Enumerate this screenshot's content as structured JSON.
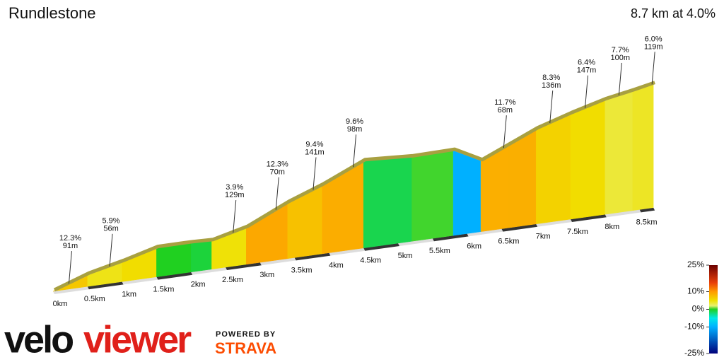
{
  "chart_data": {
    "type": "elevation-profile",
    "title": "Rundlestone",
    "subtitle": "8.7 km at 4.0%",
    "x": [
      0,
      0.5,
      1,
      1.5,
      2,
      2.3,
      2.8,
      3.4,
      3.9,
      4.5,
      5.2,
      5.8,
      6.2,
      6.6,
      7,
      7.5,
      8,
      8.4,
      8.7
    ],
    "elevation": [
      0,
      34,
      56,
      82,
      82,
      80,
      104,
      158,
      194,
      246,
      238,
      240,
      200,
      234,
      268,
      298,
      324,
      338,
      350
    ],
    "xlim": [
      0,
      8.7
    ],
    "xticks": [
      {
        "value": 0,
        "label": "0km"
      },
      {
        "value": 0.5,
        "label": "0.5km"
      },
      {
        "value": 1,
        "label": "1km"
      },
      {
        "value": 1.5,
        "label": "1.5km"
      },
      {
        "value": 2,
        "label": "2km"
      },
      {
        "value": 2.5,
        "label": "2.5km"
      },
      {
        "value": 3,
        "label": "3km"
      },
      {
        "value": 3.5,
        "label": "3.5km"
      },
      {
        "value": 4,
        "label": "4km"
      },
      {
        "value": 4.5,
        "label": "4.5km"
      },
      {
        "value": 5,
        "label": "5km"
      },
      {
        "value": 5.5,
        "label": "5.5km"
      },
      {
        "value": 6,
        "label": "6km"
      },
      {
        "value": 6.5,
        "label": "6.5km"
      },
      {
        "value": 7,
        "label": "7km"
      },
      {
        "value": 7.5,
        "label": "7.5km"
      },
      {
        "value": 8,
        "label": "8km"
      },
      {
        "value": 8.5,
        "label": "8.5km"
      }
    ],
    "climbs": {
      "x": [
        0.23,
        0.82,
        2.61,
        3.23,
        3.77,
        4.35,
        6.53,
        7.2,
        7.71,
        8.2,
        8.68
      ],
      "values": [
        12.3,
        5.9,
        3.9,
        12.3,
        9.4,
        9.6,
        11.7,
        8.3,
        6.4,
        7.7,
        6.0
      ],
      "value_labels": [
        "12.3%",
        "5.9%",
        "3.9%",
        "12.3%",
        "9.4%",
        "9.6%",
        "11.7%",
        "8.3%",
        "6.4%",
        "7.7%",
        "6.0%"
      ],
      "lengths": [
        91,
        56,
        129,
        70,
        141,
        98,
        68,
        136,
        147,
        100,
        119
      ],
      "length_labels": [
        "91m",
        "56m",
        "129m",
        "70m",
        "141m",
        "98m",
        "68m",
        "136m",
        "147m",
        "100m",
        "119m"
      ]
    },
    "color_scale": {
      "ylim": [
        -25,
        25
      ],
      "yticks": [
        {
          "value": 25,
          "label": "25%"
        },
        {
          "value": 10,
          "label": "10%"
        },
        {
          "value": 0,
          "label": "0%"
        },
        {
          "value": -10,
          "label": "-10%"
        },
        {
          "value": -25,
          "label": "-25%"
        }
      ],
      "stops": [
        {
          "value": 25,
          "color": "#6b0000"
        },
        {
          "value": 15,
          "color": "#e8400a"
        },
        {
          "value": 10,
          "color": "#ff9a00"
        },
        {
          "value": 5,
          "color": "#f0e000"
        },
        {
          "value": 2,
          "color": "#e8f070"
        },
        {
          "value": 0,
          "color": "#20d020"
        },
        {
          "value": -5,
          "color": "#00e8e8"
        },
        {
          "value": -10,
          "color": "#00b0ff"
        },
        {
          "value": -25,
          "color": "#00007a"
        }
      ]
    }
  },
  "branding": {
    "logo_left": "velo",
    "logo_right": "viewer",
    "powered": "POWERED BY",
    "strava": "STRAVA"
  }
}
